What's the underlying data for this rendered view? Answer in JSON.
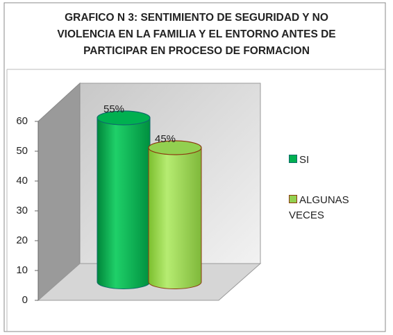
{
  "chart_data": {
    "type": "bar",
    "title": "GRAFICO N 3: SENTIMIENTO DE SEGURIDAD Y NO VIOLENCIA EN LA FAMILIA Y EL ENTORNO ANTES DE PARTICIPAR EN PROCESO DE FORMACION",
    "categories": [
      null
    ],
    "series": [
      {
        "name": "SI",
        "color": "#00b050",
        "values": [
          55
        ],
        "value_labels": [
          "55%"
        ]
      },
      {
        "name": "ALGUNAS VECES",
        "color": "#92d050",
        "values": [
          45
        ],
        "value_labels": [
          "45%"
        ]
      }
    ],
    "ylim": [
      0,
      60
    ],
    "yticks": [
      0,
      10,
      20,
      30,
      40,
      50,
      60
    ],
    "grid": false,
    "legend": "right"
  }
}
